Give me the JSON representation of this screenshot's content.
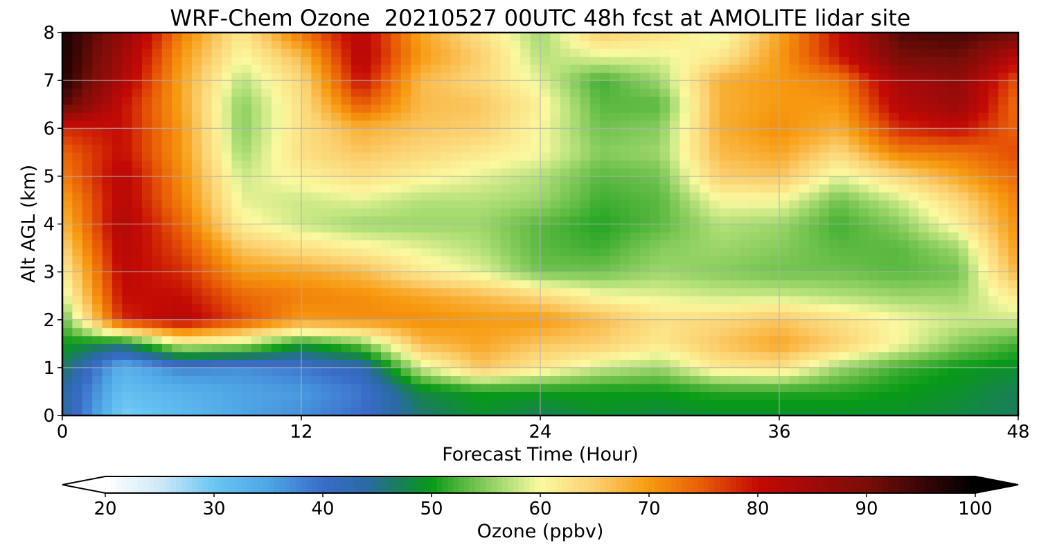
{
  "chart_data": {
    "type": "heatmap",
    "title": "WRF-Chem Ozone  20210527 00UTC 48h fcst at AMOLITE lidar site",
    "xlabel": "Forecast Time (Hour)",
    "ylabel": "Alt AGL (km)",
    "xlim": [
      0,
      48
    ],
    "ylim": [
      0,
      8
    ],
    "x_ticks": [
      "0",
      "12",
      "24",
      "36",
      "48"
    ],
    "y_ticks": [
      "0",
      "1",
      "2",
      "3",
      "4",
      "5",
      "6",
      "7",
      "8"
    ],
    "grid": true,
    "x": [
      0,
      3,
      6,
      9,
      12,
      15,
      18,
      21,
      24,
      27,
      30,
      33,
      36,
      39,
      42,
      45,
      48
    ],
    "y": [
      0,
      0.5,
      1,
      1.5,
      2,
      2.5,
      3,
      3.5,
      4,
      4.5,
      5,
      5.5,
      6,
      6.5,
      7,
      7.5,
      8
    ],
    "z": [
      [
        44,
        29,
        32,
        35,
        37,
        40,
        46,
        49,
        47,
        49,
        48,
        49,
        49,
        49,
        49,
        48,
        47
      ],
      [
        44,
        31,
        33,
        35,
        36,
        39,
        48,
        50,
        50,
        50,
        50,
        51,
        51,
        51,
        50,
        49,
        47
      ],
      [
        47,
        33,
        38,
        37,
        39,
        42,
        58,
        66,
        62,
        58,
        56,
        62,
        63,
        56,
        52,
        50,
        49
      ],
      [
        50,
        47,
        59,
        57,
        50,
        54,
        67,
        69,
        66,
        65,
        62,
        66,
        69,
        65,
        60,
        55,
        52
      ],
      [
        53,
        78,
        82,
        76,
        70,
        71,
        71,
        70,
        70,
        67,
        63,
        64,
        66,
        63,
        60,
        58,
        58
      ],
      [
        58,
        80,
        80,
        74,
        72,
        71,
        69,
        67,
        64,
        60,
        59,
        58,
        58,
        57,
        56,
        56,
        62
      ],
      [
        61,
        81,
        78,
        70,
        69,
        67,
        62,
        59,
        54,
        54,
        56,
        55,
        54,
        54,
        53,
        54,
        68
      ],
      [
        64,
        82,
        76,
        66,
        63,
        61,
        59,
        57,
        53,
        52,
        55,
        56,
        55,
        53,
        53,
        56,
        70
      ],
      [
        67,
        83,
        74,
        61,
        58,
        56,
        56,
        56,
        53,
        51,
        53,
        57,
        56,
        52,
        55,
        61,
        71
      ],
      [
        69,
        82,
        72,
        59,
        58,
        59,
        57,
        57,
        56,
        52,
        53,
        60,
        60,
        54,
        58,
        64,
        72
      ],
      [
        72,
        82,
        71,
        58,
        61,
        63,
        61,
        59,
        57,
        53,
        54,
        65,
        66,
        59,
        64,
        69,
        74
      ],
      [
        74,
        80,
        70,
        56,
        63,
        66,
        64,
        62,
        60,
        55,
        56,
        67,
        69,
        64,
        72,
        73,
        76
      ],
      [
        78,
        80,
        70,
        55,
        63,
        68,
        66,
        65,
        60,
        54,
        55,
        68,
        71,
        68,
        78,
        80,
        74
      ],
      [
        93,
        80,
        69,
        55,
        63,
        75,
        67,
        66,
        61,
        53,
        53,
        68,
        70,
        70,
        82,
        86,
        73
      ],
      [
        97,
        83,
        69,
        57,
        64,
        80,
        67,
        64,
        59,
        52,
        56,
        68,
        70,
        72,
        84,
        87,
        75
      ],
      [
        98,
        85,
        70,
        60,
        67,
        82,
        70,
        65,
        57,
        59,
        59,
        62,
        70,
        79,
        90,
        91,
        82
      ],
      [
        98,
        87,
        72,
        62,
        73,
        82,
        69,
        63,
        56,
        65,
        63,
        59,
        69,
        80,
        93,
        94,
        91
      ]
    ],
    "colorbar": {
      "label": "Ozone  (ppbv)",
      "min": 20,
      "max": 100,
      "ticks": [
        "20",
        "30",
        "40",
        "50",
        "60",
        "70",
        "80",
        "90",
        "100"
      ],
      "extend": "both",
      "stops": [
        {
          "v": 20,
          "c": "#ffffff"
        },
        {
          "v": 25,
          "c": "#cfe9f7"
        },
        {
          "v": 30,
          "c": "#6ac6f2"
        },
        {
          "v": 35,
          "c": "#4ea6e6"
        },
        {
          "v": 40,
          "c": "#3a6cc8"
        },
        {
          "v": 44,
          "c": "#2a6aa3"
        },
        {
          "v": 47,
          "c": "#1a7e5a"
        },
        {
          "v": 50,
          "c": "#079a16"
        },
        {
          "v": 53,
          "c": "#5ab840"
        },
        {
          "v": 57,
          "c": "#b4e07a"
        },
        {
          "v": 60,
          "c": "#fbf9a0"
        },
        {
          "v": 65,
          "c": "#fbd070"
        },
        {
          "v": 70,
          "c": "#f79a10"
        },
        {
          "v": 75,
          "c": "#e85a06"
        },
        {
          "v": 80,
          "c": "#c40a05"
        },
        {
          "v": 85,
          "c": "#a00a0a"
        },
        {
          "v": 90,
          "c": "#7a0e08"
        },
        {
          "v": 95,
          "c": "#3a0606"
        },
        {
          "v": 100,
          "c": "#000000"
        }
      ]
    }
  }
}
